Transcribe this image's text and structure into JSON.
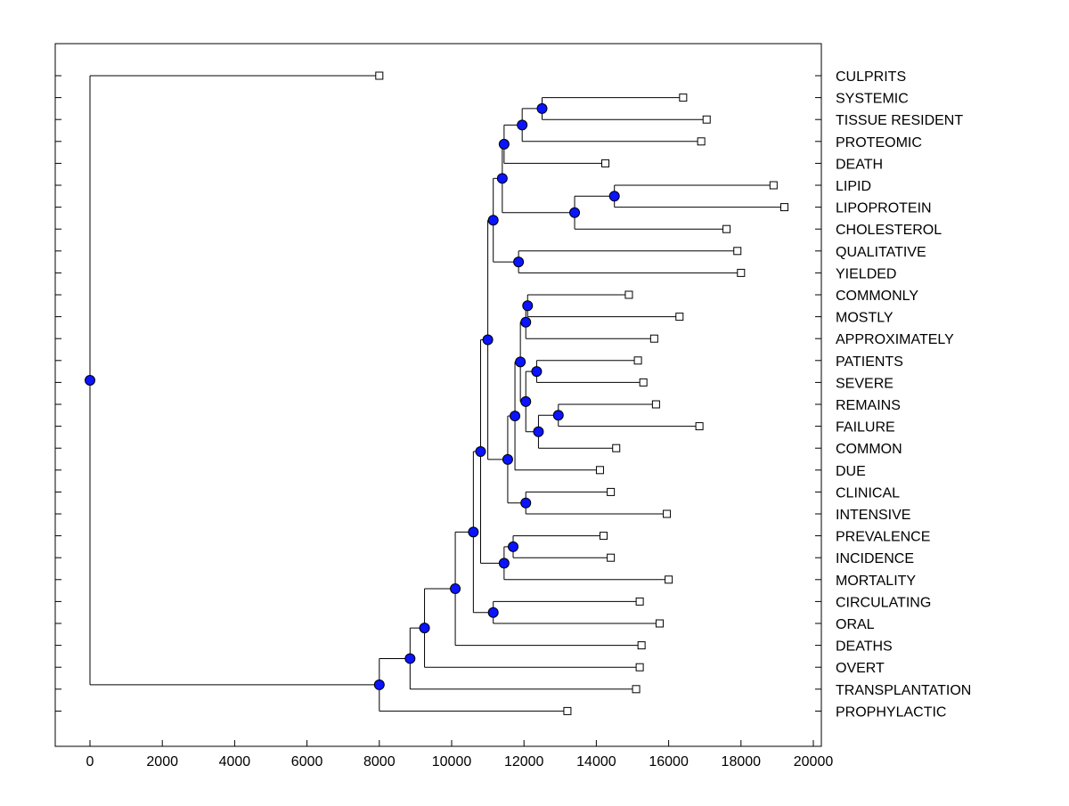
{
  "chart_data": {
    "type": "dendrogram",
    "title": "",
    "xlabel": "",
    "ylabel": "",
    "xlim": [
      -1000,
      20000
    ],
    "x_ticks": [
      0,
      2000,
      4000,
      6000,
      8000,
      10000,
      12000,
      14000,
      16000,
      18000,
      20000
    ],
    "x_tick_labels": [
      "0",
      "2000",
      "4000",
      "6000",
      "8000",
      "10000",
      "12000",
      "14000",
      "16000",
      "18000",
      "20000"
    ],
    "colors": {
      "node": "#0a14ff",
      "line": "#000000",
      "leaf_marker": "#ffffff"
    },
    "leaves": [
      {
        "label": "CULPRITS",
        "x": 8000
      },
      {
        "label": "SYSTEMIC",
        "x": 16400
      },
      {
        "label": "TISSUE RESIDENT",
        "x": 17050
      },
      {
        "label": "PROTEOMIC",
        "x": 16900
      },
      {
        "label": "DEATH",
        "x": 14250
      },
      {
        "label": "LIPID",
        "x": 18900
      },
      {
        "label": "LIPOPROTEIN",
        "x": 19200
      },
      {
        "label": "CHOLESTEROL",
        "x": 17600
      },
      {
        "label": "QUALITATIVE",
        "x": 17900
      },
      {
        "label": "YIELDED",
        "x": 18000
      },
      {
        "label": "COMMONLY",
        "x": 14900
      },
      {
        "label": "MOSTLY",
        "x": 16300
      },
      {
        "label": "APPROXIMATELY",
        "x": 15600
      },
      {
        "label": "PATIENTS",
        "x": 15150
      },
      {
        "label": "SEVERE",
        "x": 15300
      },
      {
        "label": "REMAINS",
        "x": 15650
      },
      {
        "label": "FAILURE",
        "x": 16850
      },
      {
        "label": "COMMON",
        "x": 14550
      },
      {
        "label": "DUE",
        "x": 14100
      },
      {
        "label": "CLINICAL",
        "x": 14400
      },
      {
        "label": "INTENSIVE",
        "x": 15950
      },
      {
        "label": "PREVALENCE",
        "x": 14200
      },
      {
        "label": "INCIDENCE",
        "x": 14400
      },
      {
        "label": "MORTALITY",
        "x": 16000
      },
      {
        "label": "CIRCULATING",
        "x": 15200
      },
      {
        "label": "ORAL",
        "x": 15750
      },
      {
        "label": "DEATHS",
        "x": 15250
      },
      {
        "label": "OVERT",
        "x": 15200
      },
      {
        "label": "TRANSPLANTATION",
        "x": 15100
      },
      {
        "label": "PROPHYLACTIC",
        "x": 13200
      }
    ],
    "merges": [
      {
        "id": "n1",
        "x": 12500,
        "children": [
          "L1",
          "L2"
        ]
      },
      {
        "id": "n2",
        "x": 11950,
        "children": [
          "n1",
          "L3"
        ]
      },
      {
        "id": "n3",
        "x": 11450,
        "children": [
          "n2",
          "L4"
        ]
      },
      {
        "id": "n4",
        "x": 14500,
        "children": [
          "L5",
          "L6"
        ]
      },
      {
        "id": "n5",
        "x": 13400,
        "children": [
          "n4",
          "L7"
        ]
      },
      {
        "id": "n6",
        "x": 11400,
        "children": [
          "n3",
          "n5"
        ]
      },
      {
        "id": "n7",
        "x": 11850,
        "children": [
          "L8",
          "L9"
        ]
      },
      {
        "id": "n8",
        "x": 11150,
        "children": [
          "n6",
          "n7"
        ]
      },
      {
        "id": "n9",
        "x": 12100,
        "children": [
          "L10",
          "L11"
        ]
      },
      {
        "id": "n10",
        "x": 12050,
        "children": [
          "n9",
          "L12"
        ]
      },
      {
        "id": "n11",
        "x": 12350,
        "children": [
          "L13",
          "L14"
        ]
      },
      {
        "id": "n12",
        "x": 12950,
        "children": [
          "L15",
          "L16"
        ]
      },
      {
        "id": "n13",
        "x": 12400,
        "children": [
          "n12",
          "L17"
        ]
      },
      {
        "id": "n14",
        "x": 12050,
        "children": [
          "n11",
          "n13"
        ]
      },
      {
        "id": "n15",
        "x": 11900,
        "children": [
          "n10",
          "n14"
        ]
      },
      {
        "id": "n16",
        "x": 11750,
        "children": [
          "n15",
          "L18"
        ]
      },
      {
        "id": "n17",
        "x": 12050,
        "children": [
          "L19",
          "L20"
        ]
      },
      {
        "id": "n18",
        "x": 11550,
        "children": [
          "n16",
          "n17"
        ]
      },
      {
        "id": "n19",
        "x": 11000,
        "children": [
          "n8",
          "n18"
        ]
      },
      {
        "id": "n20",
        "x": 11700,
        "children": [
          "L21",
          "L22"
        ]
      },
      {
        "id": "n21",
        "x": 11450,
        "children": [
          "n20",
          "L23"
        ]
      },
      {
        "id": "n22",
        "x": 10800,
        "children": [
          "n19",
          "n21"
        ]
      },
      {
        "id": "n23",
        "x": 11150,
        "children": [
          "L24",
          "L25"
        ]
      },
      {
        "id": "n24",
        "x": 10600,
        "children": [
          "n22",
          "n23"
        ]
      },
      {
        "id": "n25",
        "x": 10100,
        "children": [
          "n24",
          "L26"
        ]
      },
      {
        "id": "n26",
        "x": 9250,
        "children": [
          "n25",
          "L27"
        ]
      },
      {
        "id": "n27",
        "x": 8850,
        "children": [
          "n26",
          "L28"
        ]
      },
      {
        "id": "n28",
        "x": 8000,
        "children": [
          "n27",
          "L29"
        ]
      },
      {
        "id": "n29",
        "x": 0,
        "children": [
          "L0",
          "n28"
        ]
      }
    ]
  }
}
